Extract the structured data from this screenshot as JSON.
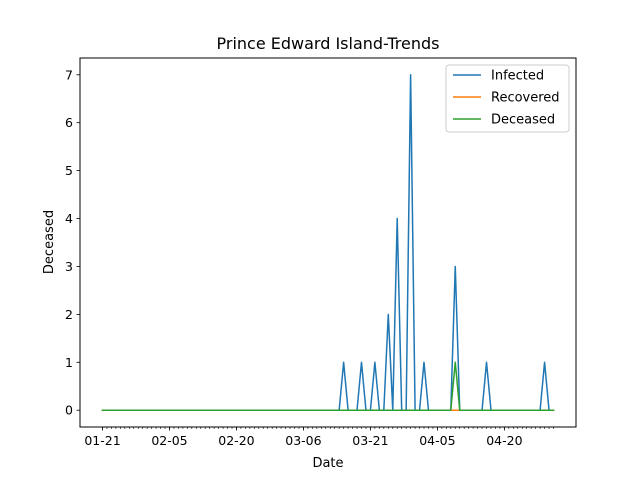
{
  "chart_data": {
    "type": "line",
    "title": "Prince Edward Island-Trends",
    "xlabel": "Date",
    "ylabel": "Deceased",
    "x_tick_labels": [
      "01-21",
      "02-05",
      "02-20",
      "03-06",
      "03-21",
      "04-05",
      "04-20"
    ],
    "x_tick_days": [
      0,
      15,
      30,
      45,
      60,
      75,
      90
    ],
    "x_range_days": [
      0,
      101
    ],
    "ylim": [
      -0.35,
      7.35
    ],
    "y_ticks": [
      0,
      1,
      2,
      3,
      4,
      5,
      6,
      7
    ],
    "legend_position": "top-right",
    "series": [
      {
        "name": "Infected",
        "color": "#1f77b4",
        "points": [
          [
            0,
            0
          ],
          [
            53,
            0
          ],
          [
            54,
            1
          ],
          [
            55,
            0
          ],
          [
            57,
            0
          ],
          [
            58,
            1
          ],
          [
            59,
            0
          ],
          [
            60,
            0
          ],
          [
            61,
            1
          ],
          [
            62,
            0
          ],
          [
            63,
            0
          ],
          [
            64,
            2
          ],
          [
            65,
            0
          ],
          [
            66,
            4
          ],
          [
            67,
            0
          ],
          [
            68,
            0
          ],
          [
            69,
            7
          ],
          [
            70,
            0
          ],
          [
            71,
            0
          ],
          [
            72,
            1
          ],
          [
            73,
            0
          ],
          [
            78,
            0
          ],
          [
            79,
            3
          ],
          [
            80,
            0
          ],
          [
            85,
            0
          ],
          [
            86,
            1
          ],
          [
            87,
            0
          ],
          [
            98,
            0
          ],
          [
            99,
            1
          ],
          [
            100,
            0
          ],
          [
            101,
            0
          ]
        ]
      },
      {
        "name": "Recovered",
        "color": "#ff7f0e",
        "points": [
          [
            0,
            0
          ],
          [
            101,
            0
          ]
        ]
      },
      {
        "name": "Deceased",
        "color": "#2ca02c",
        "points": [
          [
            0,
            0
          ],
          [
            78,
            0
          ],
          [
            79,
            1
          ],
          [
            80,
            0
          ],
          [
            101,
            0
          ]
        ]
      }
    ]
  }
}
